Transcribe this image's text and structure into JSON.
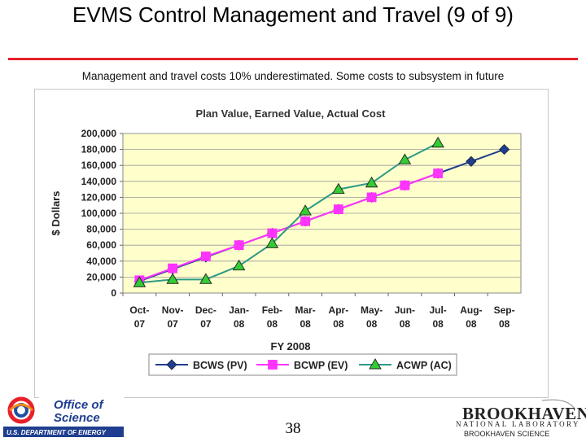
{
  "slide": {
    "title": "EVMS Control Management and Travel (9 of 9)",
    "subtitle": "Management and travel costs 10% underestimated. Some costs to subsystem in future",
    "page_number": "38"
  },
  "footer": {
    "doe_logo_text_line1": "Office of",
    "doe_logo_text_line2": "Science",
    "doe_logo_text_line3": "U.S. DEPARTMENT OF ENERGY",
    "bnl_name": "BROOKHAVEN",
    "bnl_lab": "NATIONAL LABORATORY",
    "bnl_sci": "BROOKHAVEN SCIENCE"
  },
  "colors": {
    "plot_bg": "#ffffcc",
    "bcws": "#1f3e8f",
    "bcwp": "#ff33ff",
    "acwp": "#2e9a86",
    "acwp_marker": "#33cc33",
    "rule": "#e8202a"
  },
  "chart_data": {
    "type": "line",
    "title": "Plan Value, Earned Value, Actual Cost",
    "xlabel": "FY 2008",
    "ylabel": "$ Dollars",
    "ylim": [
      0,
      200000
    ],
    "yticks": [
      0,
      20000,
      40000,
      60000,
      80000,
      100000,
      120000,
      140000,
      160000,
      180000,
      200000
    ],
    "ytick_labels": [
      "0",
      "20,000",
      "40,000",
      "60,000",
      "80,000",
      "100,000",
      "120,000",
      "140,000",
      "160,000",
      "180,000",
      "200,000"
    ],
    "categories": [
      [
        "Oct-",
        "07"
      ],
      [
        "Nov-",
        "07"
      ],
      [
        "Dec-",
        "07"
      ],
      [
        "Jan-",
        "08"
      ],
      [
        "Feb-",
        "08"
      ],
      [
        "Mar-",
        "08"
      ],
      [
        "Apr-",
        "08"
      ],
      [
        "May-",
        "08"
      ],
      [
        "Jun-",
        "08"
      ],
      [
        "Jul-",
        "08"
      ],
      [
        "Aug-",
        "08"
      ],
      [
        "Sep-",
        "08"
      ]
    ],
    "series": [
      {
        "name": "BCWS (PV)",
        "marker": "diamond",
        "values": [
          15000,
          30000,
          45000,
          60000,
          75000,
          90000,
          105000,
          120000,
          135000,
          150000,
          165000,
          180000
        ]
      },
      {
        "name": "BCWP (EV)",
        "marker": "square",
        "values": [
          16000,
          31000,
          46000,
          60000,
          75000,
          90000,
          105000,
          120000,
          135000,
          150000,
          null,
          null
        ]
      },
      {
        "name": "ACWP (AC)",
        "marker": "triangle",
        "values": [
          13000,
          17000,
          17000,
          34000,
          62000,
          103000,
          130000,
          138000,
          167000,
          188000,
          null,
          null
        ]
      }
    ],
    "legend_position": "bottom"
  }
}
